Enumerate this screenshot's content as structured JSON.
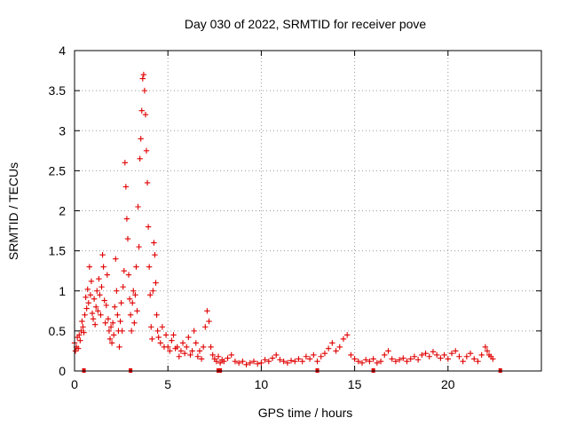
{
  "chart_data": {
    "type": "scatter",
    "title": "Day 030 of 2022, SRMTID for receiver pove",
    "xlabel": "GPS time / hours",
    "ylabel": "SRMTID / TECUs",
    "xlim": [
      0,
      25
    ],
    "ylim": [
      0,
      4
    ],
    "xticks": [
      0,
      5,
      10,
      15,
      20
    ],
    "yticks": [
      0,
      0.5,
      1,
      1.5,
      2,
      2.5,
      3,
      3.5,
      4
    ],
    "xtick_labels": [
      "0",
      "5",
      "10",
      "15",
      "20"
    ],
    "ytick_labels": [
      "0",
      "0.5",
      "1",
      "1.5",
      "2",
      "2.5",
      "3",
      "3.5",
      "4"
    ],
    "grid": true,
    "marker": "plus",
    "color": "#e00000",
    "series": [
      {
        "name": "SRMTID",
        "points": [
          [
            0.0,
            0.35
          ],
          [
            0.05,
            0.25
          ],
          [
            0.1,
            0.3
          ],
          [
            0.15,
            0.42
          ],
          [
            0.2,
            0.28
          ],
          [
            0.25,
            0.45
          ],
          [
            0.3,
            0.38
          ],
          [
            0.35,
            0.5
          ],
          [
            0.4,
            0.62
          ],
          [
            0.45,
            0.55
          ],
          [
            0.5,
            0.48
          ],
          [
            0.55,
            0.7
          ],
          [
            0.6,
            0.92
          ],
          [
            0.65,
            0.78
          ],
          [
            0.7,
            1.02
          ],
          [
            0.75,
            0.85
          ],
          [
            0.8,
            1.3
          ],
          [
            0.85,
            0.95
          ],
          [
            0.9,
            1.12
          ],
          [
            0.95,
            0.72
          ],
          [
            1.0,
            0.65
          ],
          [
            1.05,
            0.9
          ],
          [
            1.1,
            0.58
          ],
          [
            1.15,
            0.8
          ],
          [
            1.2,
            1.0
          ],
          [
            1.25,
            0.75
          ],
          [
            1.3,
            1.15
          ],
          [
            1.35,
            0.95
          ],
          [
            1.4,
            0.7
          ],
          [
            1.45,
            1.05
          ],
          [
            1.5,
            1.45
          ],
          [
            1.55,
            1.3
          ],
          [
            1.6,
            0.88
          ],
          [
            1.65,
            0.6
          ],
          [
            1.7,
            0.82
          ],
          [
            1.75,
            1.2
          ],
          [
            1.8,
            0.65
          ],
          [
            1.85,
            0.5
          ],
          [
            1.9,
            0.4
          ],
          [
            1.95,
            0.55
          ],
          [
            2.0,
            0.35
          ],
          [
            2.05,
            0.6
          ],
          [
            2.1,
            0.45
          ],
          [
            2.15,
            0.8
          ],
          [
            2.2,
            1.4
          ],
          [
            2.25,
            1.0
          ],
          [
            2.3,
            0.7
          ],
          [
            2.35,
            0.5
          ],
          [
            2.4,
            0.3
          ],
          [
            2.45,
            0.62
          ],
          [
            2.5,
            0.85
          ],
          [
            2.55,
            0.5
          ],
          [
            2.6,
            1.05
          ],
          [
            2.65,
            1.25
          ],
          [
            2.7,
            2.6
          ],
          [
            2.75,
            2.3
          ],
          [
            2.8,
            1.9
          ],
          [
            2.85,
            1.65
          ],
          [
            2.9,
            1.2
          ],
          [
            2.95,
            0.9
          ],
          [
            3.0,
            0.7
          ],
          [
            3.05,
            0.5
          ],
          [
            3.1,
            0.85
          ],
          [
            3.15,
            1.0
          ],
          [
            3.2,
            0.6
          ],
          [
            3.25,
            0.95
          ],
          [
            3.3,
            1.3
          ],
          [
            3.35,
            0.75
          ],
          [
            3.4,
            2.05
          ],
          [
            3.45,
            1.55
          ],
          [
            3.5,
            2.65
          ],
          [
            3.55,
            2.9
          ],
          [
            3.6,
            3.25
          ],
          [
            3.65,
            3.65
          ],
          [
            3.7,
            3.7
          ],
          [
            3.75,
            3.5
          ],
          [
            3.8,
            3.2
          ],
          [
            3.85,
            2.75
          ],
          [
            3.9,
            2.35
          ],
          [
            3.95,
            1.8
          ],
          [
            4.0,
            1.3
          ],
          [
            4.05,
            0.95
          ],
          [
            4.1,
            0.55
          ],
          [
            4.15,
            0.4
          ],
          [
            4.2,
            1.0
          ],
          [
            4.25,
            1.6
          ],
          [
            4.3,
            1.45
          ],
          [
            4.35,
            1.1
          ],
          [
            4.4,
            0.7
          ],
          [
            4.45,
            0.5
          ],
          [
            4.5,
            0.42
          ],
          [
            4.6,
            0.35
          ],
          [
            4.7,
            0.55
          ],
          [
            4.8,
            0.3
          ],
          [
            4.9,
            0.45
          ],
          [
            5.0,
            0.3
          ],
          [
            5.1,
            0.25
          ],
          [
            5.2,
            0.38
          ],
          [
            5.3,
            0.45
          ],
          [
            5.4,
            0.28
          ],
          [
            5.5,
            0.3
          ],
          [
            5.6,
            0.18
          ],
          [
            5.7,
            0.25
          ],
          [
            5.8,
            0.35
          ],
          [
            5.9,
            0.22
          ],
          [
            6.0,
            0.3
          ],
          [
            6.1,
            0.42
          ],
          [
            6.2,
            0.2
          ],
          [
            6.3,
            0.25
          ],
          [
            6.4,
            0.5
          ],
          [
            6.5,
            0.35
          ],
          [
            6.6,
            0.18
          ],
          [
            6.7,
            0.25
          ],
          [
            6.8,
            0.15
          ],
          [
            6.9,
            0.3
          ],
          [
            7.0,
            0.55
          ],
          [
            7.1,
            0.75
          ],
          [
            7.2,
            0.62
          ],
          [
            7.3,
            0.3
          ],
          [
            7.4,
            0.2
          ],
          [
            7.5,
            0.15
          ],
          [
            7.6,
            0.12
          ],
          [
            7.7,
            0.18
          ],
          [
            7.8,
            0.1
          ],
          [
            7.9,
            0.14
          ],
          [
            8.0,
            0.12
          ],
          [
            8.2,
            0.16
          ],
          [
            8.4,
            0.2
          ],
          [
            8.6,
            0.12
          ],
          [
            8.8,
            0.1
          ],
          [
            9.0,
            0.12
          ],
          [
            9.2,
            0.08
          ],
          [
            9.4,
            0.1
          ],
          [
            9.6,
            0.12
          ],
          [
            9.8,
            0.09
          ],
          [
            10.0,
            0.1
          ],
          [
            10.2,
            0.14
          ],
          [
            10.4,
            0.12
          ],
          [
            10.6,
            0.16
          ],
          [
            10.8,
            0.2
          ],
          [
            11.0,
            0.14
          ],
          [
            11.2,
            0.12
          ],
          [
            11.4,
            0.1
          ],
          [
            11.6,
            0.13
          ],
          [
            11.8,
            0.12
          ],
          [
            12.0,
            0.15
          ],
          [
            12.2,
            0.12
          ],
          [
            12.4,
            0.18
          ],
          [
            12.6,
            0.15
          ],
          [
            12.8,
            0.2
          ],
          [
            13.0,
            0.12
          ],
          [
            13.2,
            0.18
          ],
          [
            13.4,
            0.22
          ],
          [
            13.6,
            0.28
          ],
          [
            13.8,
            0.35
          ],
          [
            14.0,
            0.25
          ],
          [
            14.2,
            0.3
          ],
          [
            14.4,
            0.4
          ],
          [
            14.6,
            0.45
          ],
          [
            14.8,
            0.2
          ],
          [
            15.0,
            0.15
          ],
          [
            15.2,
            0.12
          ],
          [
            15.4,
            0.1
          ],
          [
            15.6,
            0.14
          ],
          [
            15.8,
            0.12
          ],
          [
            16.0,
            0.15
          ],
          [
            16.2,
            0.1
          ],
          [
            16.4,
            0.12
          ],
          [
            16.6,
            0.2
          ],
          [
            16.8,
            0.25
          ],
          [
            17.0,
            0.15
          ],
          [
            17.2,
            0.12
          ],
          [
            17.4,
            0.14
          ],
          [
            17.6,
            0.16
          ],
          [
            17.8,
            0.12
          ],
          [
            18.0,
            0.15
          ],
          [
            18.2,
            0.18
          ],
          [
            18.4,
            0.14
          ],
          [
            18.6,
            0.2
          ],
          [
            18.8,
            0.22
          ],
          [
            19.0,
            0.18
          ],
          [
            19.2,
            0.24
          ],
          [
            19.4,
            0.2
          ],
          [
            19.6,
            0.16
          ],
          [
            19.8,
            0.2
          ],
          [
            20.0,
            0.15
          ],
          [
            20.2,
            0.22
          ],
          [
            20.4,
            0.25
          ],
          [
            20.6,
            0.18
          ],
          [
            20.8,
            0.12
          ],
          [
            21.0,
            0.18
          ],
          [
            21.2,
            0.22
          ],
          [
            21.4,
            0.15
          ],
          [
            21.6,
            0.12
          ],
          [
            21.8,
            0.2
          ],
          [
            22.0,
            0.3
          ],
          [
            22.1,
            0.25
          ],
          [
            22.2,
            0.2
          ],
          [
            22.3,
            0.18
          ],
          [
            22.4,
            0.15
          ]
        ]
      }
    ],
    "baseline_markers_x": [
      0.5,
      3.0,
      7.7,
      7.8,
      13.0,
      16.0,
      22.8
    ]
  }
}
